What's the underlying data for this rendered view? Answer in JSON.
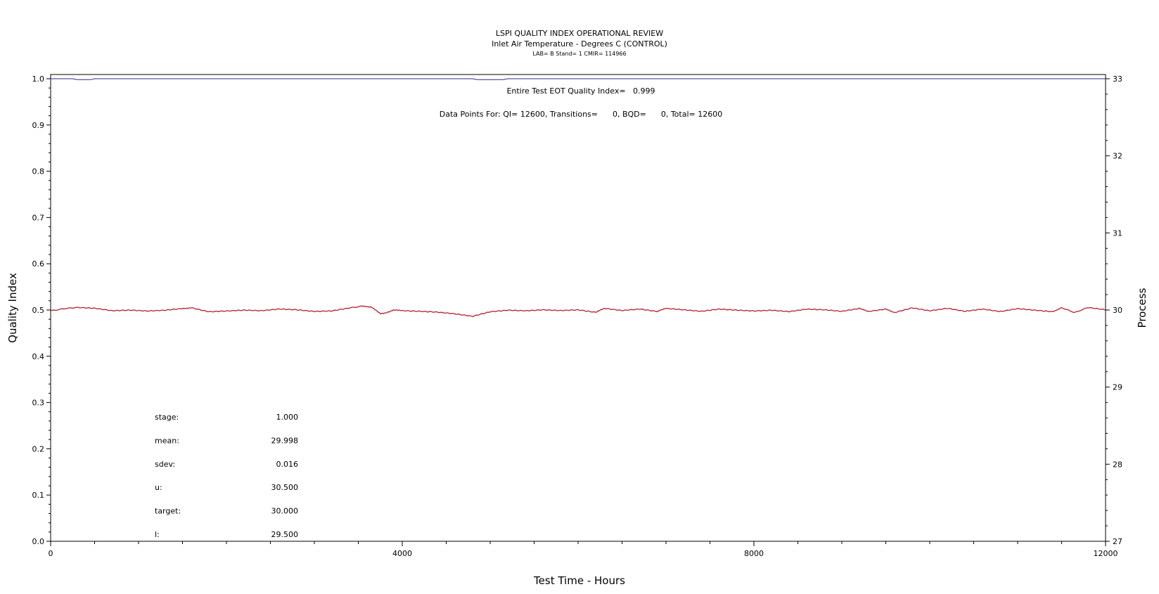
{
  "chart_data": {
    "type": "line",
    "title": "LSPI QUALITY INDEX OPERATIONAL REVIEW",
    "subtitle": "Inlet Air Temperature - Degrees C (CONTROL)",
    "subtitle2": "LAB= B Stand= 1 CMIR= 114966",
    "xlabel": "Test Time - Hours",
    "ylabel": "Quality Index",
    "y2label": "Process",
    "xlim": [
      0,
      12000
    ],
    "ylim": [
      0,
      1.0
    ],
    "y2lim": [
      27,
      33
    ],
    "x_ticks": [
      "0",
      "4000",
      "8000",
      "12000"
    ],
    "y_ticks": [
      "0.0",
      "0.1",
      "0.2",
      "0.3",
      "0.4",
      "0.5",
      "0.6",
      "0.7",
      "0.8",
      "0.9",
      "1.0"
    ],
    "y2_ticks": [
      "27",
      "28",
      "29",
      "30",
      "31",
      "32",
      "33"
    ],
    "annotations": {
      "quality_index": "Entire Test EOT Quality Index=   0.999",
      "data_points": "Data Points For: QI= 12600, Transitions=      0, BQD=      0, Total= 12600"
    },
    "stats": [
      {
        "label": "stage:",
        "value": "1.000"
      },
      {
        "label": "mean:",
        "value": "29.998"
      },
      {
        "label": "sdev:",
        "value": "0.016"
      },
      {
        "label": "u:",
        "value": "30.500"
      },
      {
        "label": "target:",
        "value": "30.000"
      },
      {
        "label": "l:",
        "value": "29.500"
      }
    ],
    "series": [
      {
        "axis": "left",
        "color": "#2b2b8c",
        "x": [
          0,
          250,
          300,
          460,
          500,
          4800,
          4850,
          5150,
          5200,
          12000
        ],
        "y": [
          1.0,
          1.0,
          0.998,
          0.998,
          1.0,
          1.0,
          0.998,
          0.998,
          1.0,
          1.0
        ]
      },
      {
        "axis": "right",
        "color": "#b0202e",
        "x": [
          0,
          150,
          300,
          500,
          700,
          900,
          1100,
          1300,
          1500,
          1600,
          1800,
          2000,
          2200,
          2400,
          2600,
          2800,
          3000,
          3200,
          3400,
          3550,
          3650,
          3750,
          3800,
          3900,
          4000,
          4200,
          4400,
          4600,
          4800,
          5000,
          5200,
          5400,
          5600,
          5800,
          6000,
          6200,
          6300,
          6500,
          6700,
          6900,
          7000,
          7200,
          7400,
          7600,
          7800,
          8000,
          8200,
          8400,
          8600,
          8800,
          9000,
          9200,
          9300,
          9500,
          9600,
          9800,
          10000,
          10200,
          10400,
          10600,
          10800,
          11000,
          11200,
          11400,
          11500,
          11650,
          11800,
          12000
        ],
        "y": [
          29.99,
          30.02,
          30.03,
          30.02,
          29.99,
          30.0,
          29.99,
          30.0,
          30.02,
          30.03,
          29.98,
          29.99,
          30.0,
          29.99,
          30.01,
          30.0,
          29.98,
          29.99,
          30.03,
          30.05,
          30.04,
          29.95,
          29.96,
          30.0,
          29.99,
          29.98,
          29.97,
          29.95,
          29.92,
          29.98,
          30.0,
          29.99,
          30.0,
          29.99,
          30.0,
          29.97,
          30.02,
          29.99,
          30.01,
          29.98,
          30.02,
          30.0,
          29.98,
          30.01,
          30.0,
          29.99,
          30.0,
          29.98,
          30.01,
          30.0,
          29.98,
          30.02,
          29.98,
          30.01,
          29.97,
          30.03,
          29.99,
          30.02,
          29.98,
          30.01,
          29.98,
          30.02,
          30.0,
          29.98,
          30.03,
          29.97,
          30.03,
          30.0
        ]
      }
    ]
  }
}
